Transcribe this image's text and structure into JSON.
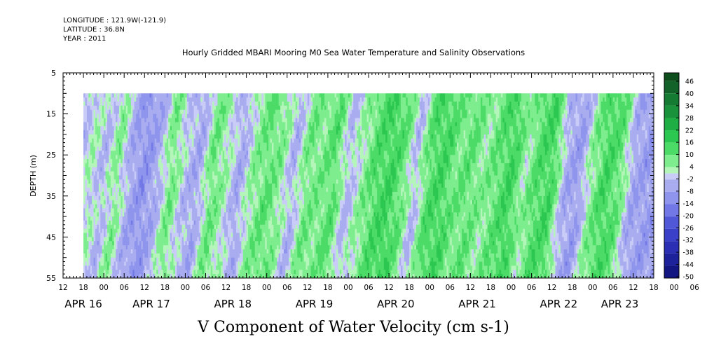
{
  "chart_data": {
    "type": "heatmap",
    "title": "Hourly Gridded MBARI Mooring M0 Sea Water Temperature and Salinity Observations",
    "header_lines": [
      "LONGITUDE : 121.9W(-121.9)",
      "LATITUDE : 36.8N",
      "YEAR : 2011"
    ],
    "variable_label": "V Component of Water Velocity (cm s-1)",
    "ylabel": "DEPTH (m)",
    "y_ticks": [
      5,
      15,
      25,
      35,
      45,
      55
    ],
    "y_range": [
      5,
      55
    ],
    "y_inverted": true,
    "data_depth_range": [
      10,
      55
    ],
    "x_start_hour": 12,
    "x_end_hour": 186,
    "data_start_hour": 18,
    "data_end_hour": 186,
    "x_hour_labels": [
      "12",
      "18",
      "00",
      "06",
      "12",
      "18",
      "00",
      "06",
      "12",
      "18",
      "00",
      "06",
      "12",
      "18",
      "00",
      "06",
      "12",
      "18",
      "00",
      "06",
      "12",
      "18",
      "00",
      "06",
      "12",
      "18",
      "00",
      "06",
      "12",
      "18",
      "00",
      "06"
    ],
    "x_date_labels": [
      {
        "label": "APR 16",
        "hour": 18
      },
      {
        "label": "APR 17",
        "hour": 38
      },
      {
        "label": "APR 18",
        "hour": 62
      },
      {
        "label": "APR 19",
        "hour": 86
      },
      {
        "label": "APR 20",
        "hour": 110
      },
      {
        "label": "APR 21",
        "hour": 134
      },
      {
        "label": "APR 22",
        "hour": 158
      },
      {
        "label": "APR 23",
        "hour": 176
      }
    ],
    "colorbar": {
      "labels": [
        "46",
        "40",
        "34",
        "28",
        "22",
        "16",
        "10",
        "4",
        "-2",
        "-8",
        "-14",
        "-20",
        "-26",
        "-32",
        "-38",
        "-44",
        "-50"
      ],
      "min": -50,
      "max": 50,
      "bands": [
        {
          "from": 46,
          "to": 50,
          "color": "#0e4d1c"
        },
        {
          "from": 40,
          "to": 46,
          "color": "#12622a"
        },
        {
          "from": 34,
          "to": 40,
          "color": "#157a32"
        },
        {
          "from": 28,
          "to": 34,
          "color": "#19923b"
        },
        {
          "from": 22,
          "to": 28,
          "color": "#1fae44"
        },
        {
          "from": 16,
          "to": 22,
          "color": "#2cc750"
        },
        {
          "from": 10,
          "to": 16,
          "color": "#4cdb66"
        },
        {
          "from": 4,
          "to": 10,
          "color": "#7ded8e"
        },
        {
          "from": 1,
          "to": 4,
          "color": "#b4f5ba"
        },
        {
          "from": -2,
          "to": 1,
          "color": "#c9ccf6"
        },
        {
          "from": -8,
          "to": -2,
          "color": "#a9adf0"
        },
        {
          "from": -14,
          "to": -8,
          "color": "#8f95ec"
        },
        {
          "from": -20,
          "to": -14,
          "color": "#7279e6"
        },
        {
          "from": -26,
          "to": -20,
          "color": "#5158d8"
        },
        {
          "from": -32,
          "to": -26,
          "color": "#3a40c8"
        },
        {
          "from": -38,
          "to": -32,
          "color": "#2a2fb4"
        },
        {
          "from": -44,
          "to": -38,
          "color": "#1e229a"
        },
        {
          "from": -50,
          "to": -44,
          "color": "#131680"
        }
      ]
    },
    "time_profile": [
      {
        "hour": 18,
        "v": -5
      },
      {
        "hour": 22,
        "v": 3
      },
      {
        "hour": 26,
        "v": -3
      },
      {
        "hour": 30,
        "v": 6
      },
      {
        "hour": 34,
        "v": -6
      },
      {
        "hour": 38,
        "v": -10
      },
      {
        "hour": 42,
        "v": -5
      },
      {
        "hour": 46,
        "v": 8
      },
      {
        "hour": 50,
        "v": -2
      },
      {
        "hour": 54,
        "v": -6
      },
      {
        "hour": 58,
        "v": 9
      },
      {
        "hour": 62,
        "v": 3
      },
      {
        "hour": 66,
        "v": -6
      },
      {
        "hour": 70,
        "v": 5
      },
      {
        "hour": 74,
        "v": 10
      },
      {
        "hour": 78,
        "v": 6
      },
      {
        "hour": 82,
        "v": -4
      },
      {
        "hour": 86,
        "v": 8
      },
      {
        "hour": 90,
        "v": 7
      },
      {
        "hour": 94,
        "v": 11
      },
      {
        "hour": 98,
        "v": -3
      },
      {
        "hour": 102,
        "v": 4
      },
      {
        "hour": 106,
        "v": 12
      },
      {
        "hour": 110,
        "v": 15
      },
      {
        "hour": 114,
        "v": 10
      },
      {
        "hour": 118,
        "v": -3
      },
      {
        "hour": 122,
        "v": 12
      },
      {
        "hour": 126,
        "v": 14
      },
      {
        "hour": 130,
        "v": 8
      },
      {
        "hour": 134,
        "v": 10
      },
      {
        "hour": 138,
        "v": 5
      },
      {
        "hour": 142,
        "v": 10
      },
      {
        "hour": 146,
        "v": 15
      },
      {
        "hour": 150,
        "v": 4
      },
      {
        "hour": 154,
        "v": 12
      },
      {
        "hour": 158,
        "v": 14
      },
      {
        "hour": 162,
        "v": -5
      },
      {
        "hour": 166,
        "v": -8
      },
      {
        "hour": 170,
        "v": 6
      },
      {
        "hour": 174,
        "v": 14
      },
      {
        "hour": 178,
        "v": 10
      },
      {
        "hour": 182,
        "v": -6
      },
      {
        "hour": 186,
        "v": -8
      }
    ]
  }
}
